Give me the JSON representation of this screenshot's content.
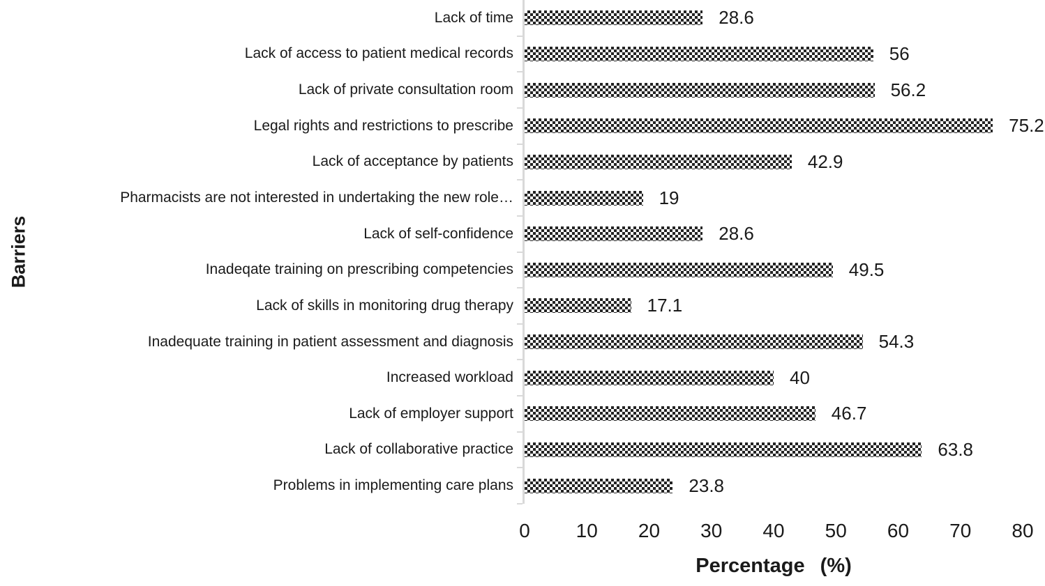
{
  "chart_data": {
    "type": "bar",
    "orientation": "horizontal",
    "title": "",
    "xlabel": "Percentage (%)",
    "ylabel": "Barriers",
    "xlim": [
      0,
      80
    ],
    "x_ticks": [
      "0",
      "10",
      "20",
      "30",
      "40",
      "50",
      "60",
      "70",
      "80"
    ],
    "grid": false,
    "legend": false,
    "bar_style": "black-and-white checkerboard pattern fill",
    "categories": [
      "Lack of time",
      "Lack of access to patient medical records",
      "Lack of private consultation room",
      "Legal rights and restrictions to prescribe",
      "Lack of acceptance by patients",
      "Pharmacists are not interested in undertaking the new role…",
      "Lack of self-confidence",
      "Inadeqate training on prescribing competencies",
      "Lack of skills in monitoring drug therapy",
      "Inadequate training in patient assessment and diagnosis",
      "Increased workload",
      "Lack of employer support",
      "Lack of collaborative practice",
      "Problems in implementing care plans"
    ],
    "values": [
      28.6,
      56,
      56.2,
      75.2,
      42.9,
      19,
      28.6,
      49.5,
      17.1,
      54.3,
      40,
      46.7,
      63.8,
      23.8
    ],
    "value_labels": [
      "28.6",
      "56",
      "56.2",
      "75.2",
      "42.9",
      "19",
      "28.6",
      "49.5",
      "17.1",
      "54.3",
      "40",
      "46.7",
      "63.8",
      "23.8"
    ]
  },
  "colors": {
    "bar_fill": "#242424",
    "axis_line": "#d9d9d9",
    "text": "#1a1a1a",
    "background": "#ffffff"
  }
}
